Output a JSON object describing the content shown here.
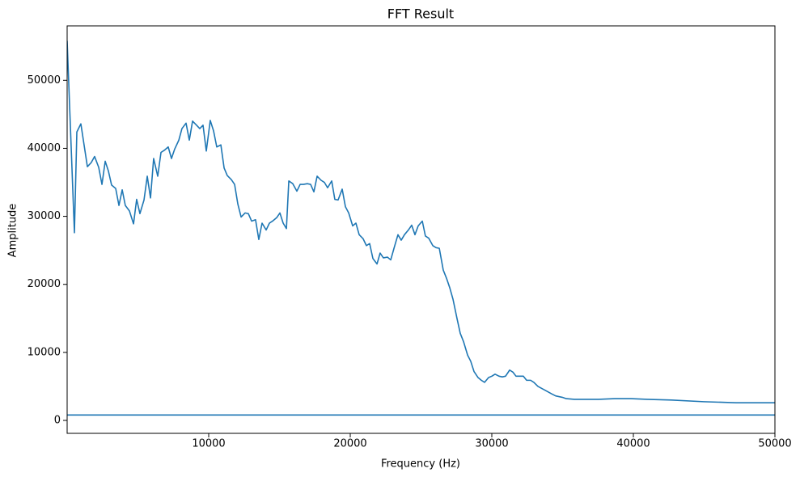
{
  "chart_data": {
    "type": "line",
    "title": "FFT Result",
    "x_label": "Frequency (Hz)",
    "y_label": "Amplitude",
    "xlim": [
      0,
      50000
    ],
    "ylim": [
      -1900,
      58000
    ],
    "xticks": [
      10000,
      20000,
      30000,
      40000,
      50000
    ],
    "yticks": [
      0,
      10000,
      20000,
      30000,
      40000,
      50000
    ],
    "grid": false,
    "series": [
      {
        "color": "#1f77b4",
        "x": [
          0,
          514,
          686,
          970,
          1430,
          1700,
          1940,
          2230,
          2460,
          2690,
          2910,
          3140,
          3430,
          3660,
          3890,
          4110,
          4400,
          4690,
          4910,
          5140,
          5430,
          5660,
          5890,
          6110,
          6400,
          6630,
          6860,
          7140,
          7370,
          7600,
          7890,
          8110,
          8400,
          8630,
          8860,
          9140,
          9370,
          9600,
          9830,
          10110,
          10340,
          10570,
          10860,
          11090,
          11310,
          11600,
          11830,
          12060,
          12290,
          12570,
          12800,
          13030,
          13310,
          13540,
          13770,
          14060,
          14290,
          14510,
          14800,
          15030,
          15260,
          15490,
          15660,
          15940,
          16230,
          16460,
          16690,
          16970,
          17200,
          17430,
          17660,
          17940,
          18170,
          18400,
          18690,
          18910,
          19140,
          19430,
          19660,
          19890,
          20170,
          20400,
          20630,
          20910,
          21140,
          21370,
          21600,
          21890,
          22110,
          22340,
          22630,
          22860,
          23090,
          23370,
          23600,
          23830,
          24110,
          24340,
          24570,
          24800,
          25090,
          25310,
          25540,
          25830,
          26060,
          26290,
          26570,
          26800,
          27030,
          27260,
          27540,
          27770,
          28000,
          28290,
          28510,
          28740,
          29030,
          29260,
          29490,
          29770,
          30000,
          30230,
          30510,
          30740,
          30970,
          31260,
          31490,
          31710,
          32000,
          32230,
          32460,
          32740,
          32970,
          33260,
          33710,
          34230,
          34510,
          34970,
          35260,
          35830,
          36690,
          37540,
          38690,
          39830,
          40970,
          42690,
          44970,
          47260,
          50000
        ],
        "values": [
          55800,
          27600,
          42400,
          43600,
          37300,
          37900,
          38800,
          37200,
          34700,
          38100,
          36700,
          34600,
          34100,
          31600,
          33900,
          31600,
          30800,
          28900,
          32500,
          30400,
          32400,
          35900,
          32700,
          38500,
          35900,
          39400,
          39700,
          40200,
          38500,
          39900,
          41200,
          42900,
          43700,
          41200,
          44000,
          43400,
          42900,
          43400,
          39600,
          44100,
          42600,
          40200,
          40500,
          37100,
          36000,
          35400,
          34700,
          31800,
          29900,
          30500,
          30400,
          29300,
          29500,
          26600,
          29000,
          28000,
          29000,
          29300,
          29800,
          30500,
          29000,
          28200,
          35200,
          34800,
          33700,
          34700,
          34700,
          34800,
          34700,
          33600,
          35900,
          35300,
          35000,
          34200,
          35200,
          32500,
          32400,
          34000,
          31400,
          30500,
          28600,
          29000,
          27300,
          26700,
          25700,
          26000,
          23800,
          23000,
          24600,
          23900,
          24000,
          23600,
          25300,
          27300,
          26500,
          27300,
          28000,
          28700,
          27300,
          28600,
          29300,
          27100,
          26800,
          25700,
          25400,
          25300,
          22100,
          20900,
          19500,
          17800,
          15000,
          12800,
          11600,
          9600,
          8700,
          7200,
          6300,
          5900,
          5600,
          6300,
          6500,
          6800,
          6500,
          6400,
          6500,
          7400,
          7100,
          6500,
          6500,
          6500,
          5900,
          5900,
          5600,
          5000,
          4500,
          3900,
          3600,
          3400,
          3200,
          3100,
          3100,
          3100,
          3200,
          3200,
          3100,
          3000,
          2750,
          2600,
          2600
        ]
      },
      {
        "color": "#1f77b4",
        "x": [
          0,
          50000
        ],
        "values": [
          800,
          800
        ]
      }
    ]
  }
}
